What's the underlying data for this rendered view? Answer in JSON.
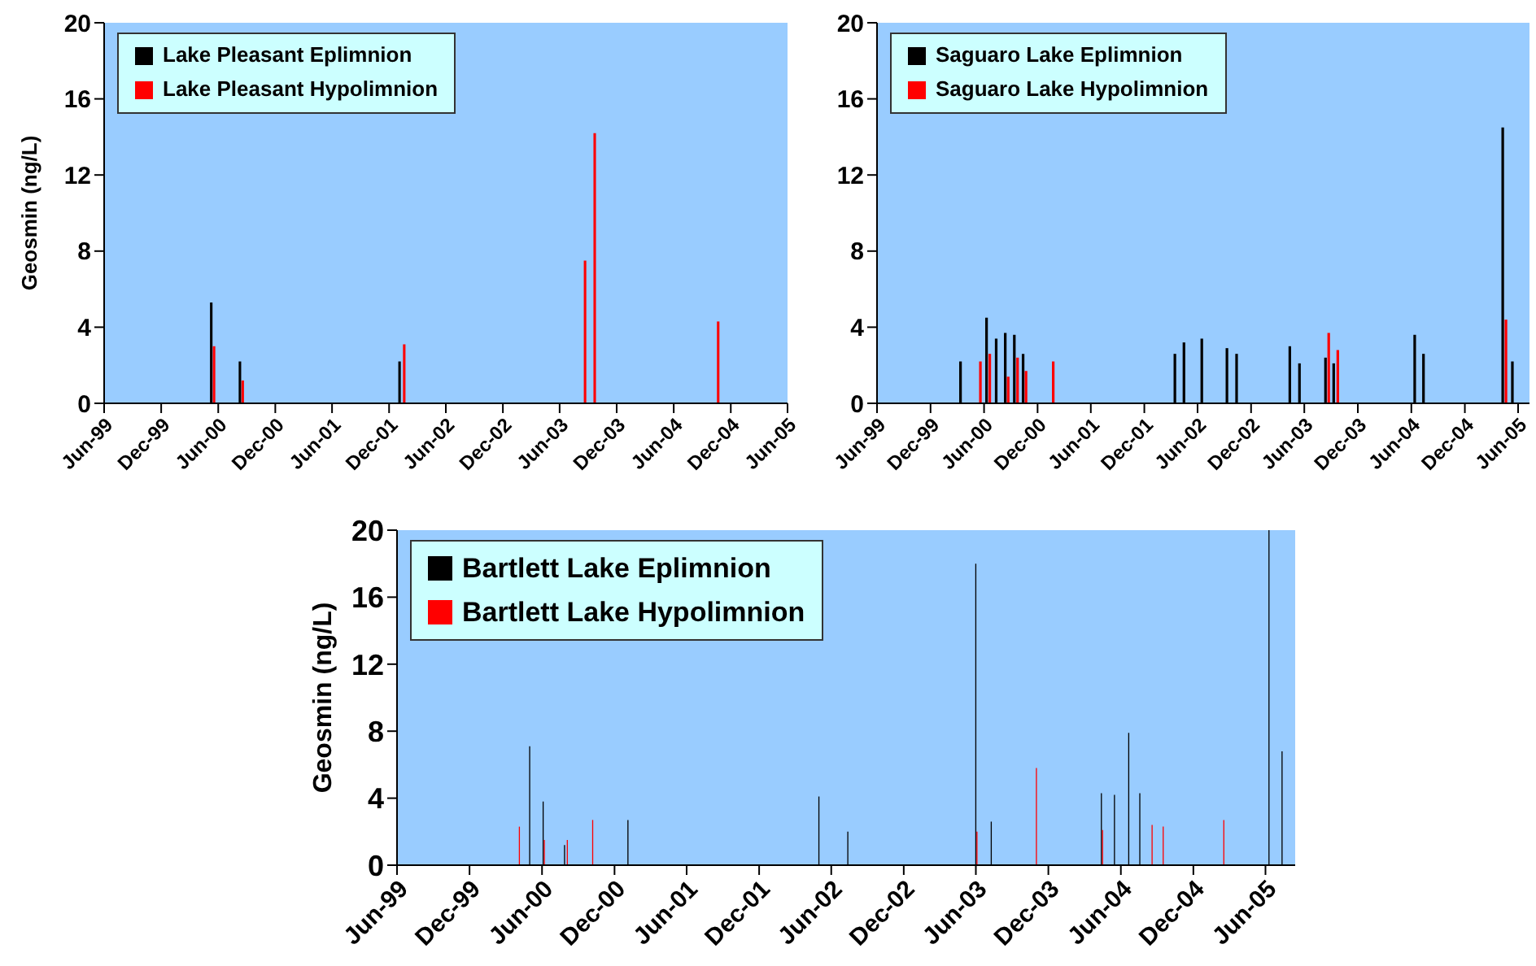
{
  "chart_data": [
    {
      "type": "bar",
      "ylabel": "Geosmin (ng/L)",
      "xlim": [
        "1999-06",
        "2005-06"
      ],
      "xticks": [
        {
          "value": "1999-06",
          "label": "Jun-99"
        },
        {
          "value": "1999-12",
          "label": "Dec-99"
        },
        {
          "value": "2000-06",
          "label": "Jun-00"
        },
        {
          "value": "2000-12",
          "label": "Dec-00"
        },
        {
          "value": "2001-06",
          "label": "Jun-01"
        },
        {
          "value": "2001-12",
          "label": "Dec-01"
        },
        {
          "value": "2002-06",
          "label": "Jun-02"
        },
        {
          "value": "2002-12",
          "label": "Dec-02"
        },
        {
          "value": "2003-06",
          "label": "Jun-03"
        },
        {
          "value": "2003-12",
          "label": "Dec-03"
        },
        {
          "value": "2004-06",
          "label": "Jun-04"
        },
        {
          "value": "2004-12",
          "label": "Dec-04"
        },
        {
          "value": "2005-06",
          "label": "Jun-05"
        }
      ],
      "ylim": [
        0,
        20
      ],
      "yticks": [
        0,
        4,
        8,
        12,
        16,
        20
      ],
      "legend": "top left",
      "grid": false,
      "series": [
        {
          "name": "Lake Pleasant Eplimnion",
          "color": "#000000",
          "x": [
            "2000-05-10",
            "2000-08-10",
            "2002-01-04"
          ],
          "values": [
            5.3,
            2.2,
            2.2
          ]
        },
        {
          "name": "Lake Pleasant Hypolimnion",
          "color": "#ff0000",
          "x": [
            "2000-05-19",
            "2000-08-19",
            "2002-01-19",
            "2003-08-22",
            "2003-09-22",
            "2004-10-22"
          ],
          "values": [
            3.0,
            1.2,
            3.1,
            7.5,
            14.2,
            4.3
          ]
        }
      ]
    },
    {
      "type": "bar",
      "xlim": [
        "1999-06",
        "2005-07-10"
      ],
      "xticks": [
        {
          "value": "1999-06",
          "label": "Jun-99"
        },
        {
          "value": "1999-12",
          "label": "Dec-99"
        },
        {
          "value": "2000-06",
          "label": "Jun-00"
        },
        {
          "value": "2000-12",
          "label": "Dec-00"
        },
        {
          "value": "2001-06",
          "label": "Jun-01"
        },
        {
          "value": "2001-12",
          "label": "Dec-01"
        },
        {
          "value": "2002-06",
          "label": "Jun-02"
        },
        {
          "value": "2002-12",
          "label": "Dec-02"
        },
        {
          "value": "2003-06",
          "label": "Jun-03"
        },
        {
          "value": "2003-12",
          "label": "Dec-03"
        },
        {
          "value": "2004-06",
          "label": "Jun-04"
        },
        {
          "value": "2004-12",
          "label": "Dec-04"
        },
        {
          "value": "2005-06",
          "label": "Jun-05"
        }
      ],
      "ylim": [
        0,
        20
      ],
      "yticks": [
        0,
        4,
        8,
        12,
        16,
        20
      ],
      "legend": "top left",
      "grid": false,
      "series": [
        {
          "name": "Saguaro Lake Eplimnion",
          "color": "#000000",
          "x": [
            "2000-03-13",
            "2000-06-10",
            "2000-07-13",
            "2000-08-13",
            "2000-09-13",
            "2000-10-13",
            "2002-03-16",
            "2002-04-16",
            "2002-06-16",
            "2002-09-10",
            "2002-10-13",
            "2003-04-13",
            "2003-05-16",
            "2003-08-13",
            "2003-09-10",
            "2004-06-13",
            "2004-07-13",
            "2005-04-10",
            "2005-05-13"
          ],
          "values": [
            2.2,
            4.5,
            3.4,
            3.7,
            3.6,
            2.6,
            2.6,
            3.2,
            3.4,
            2.9,
            2.6,
            3.0,
            2.1,
            2.4,
            2.1,
            3.6,
            2.6,
            14.5,
            2.2
          ]
        },
        {
          "name": "Saguaro Lake Hypolimnion",
          "color": "#ff0000",
          "x": [
            "2000-05-20",
            "2000-06-21",
            "2000-08-23",
            "2000-09-24",
            "2000-10-23",
            "2001-01-24",
            "2003-08-24",
            "2003-09-24",
            "2005-04-21"
          ],
          "values": [
            2.2,
            2.6,
            1.4,
            2.4,
            1.7,
            2.2,
            3.7,
            2.8,
            4.4
          ]
        }
      ]
    },
    {
      "type": "bar",
      "ylabel": "Geosmin (ng/L)",
      "xlim": [
        "1999-06",
        "2005-08-15"
      ],
      "xticks": [
        {
          "value": "1999-06",
          "label": "Jun-99"
        },
        {
          "value": "1999-12",
          "label": "Dec-99"
        },
        {
          "value": "2000-06",
          "label": "Jun-00"
        },
        {
          "value": "2000-12",
          "label": "Dec-00"
        },
        {
          "value": "2001-06",
          "label": "Jun-01"
        },
        {
          "value": "2001-12",
          "label": "Dec-01"
        },
        {
          "value": "2002-06",
          "label": "Jun-02"
        },
        {
          "value": "2002-12",
          "label": "Dec-02"
        },
        {
          "value": "2003-06",
          "label": "Jun-03"
        },
        {
          "value": "2003-12",
          "label": "Dec-03"
        },
        {
          "value": "2004-06",
          "label": "Jun-04"
        },
        {
          "value": "2004-12",
          "label": "Dec-04"
        },
        {
          "value": "2005-06",
          "label": "Jun-05"
        }
      ],
      "ylim": [
        0,
        20
      ],
      "yticks": [
        0,
        4,
        8,
        12,
        16,
        20
      ],
      "legend": "top left",
      "grid": false,
      "series": [
        {
          "name": "Bartlett Lake Eplimnion",
          "color": "#000000",
          "x": [
            "2000-05-01",
            "2000-06-04",
            "2000-07-28",
            "2001-01-04",
            "2002-05-01",
            "2002-07-13",
            "2003-06-01",
            "2003-07-10",
            "2004-04-13",
            "2004-05-16",
            "2004-06-21",
            "2004-07-19",
            "2005-06-10",
            "2005-07-13"
          ],
          "values": [
            7.1,
            3.8,
            1.2,
            2.7,
            4.1,
            2.0,
            18,
            2.6,
            4.3,
            4.2,
            7.9,
            4.3,
            20,
            6.8
          ]
        },
        {
          "name": "Bartlett Lake Hypolimnion",
          "color": "#ff0000",
          "x": [
            "2000-04-05",
            "2000-06-07",
            "2000-08-04",
            "2000-10-07",
            "2003-06-04",
            "2003-11-01",
            "2004-04-16",
            "2004-08-19",
            "2004-09-16",
            "2005-02-16"
          ],
          "values": [
            2.3,
            1.5,
            1.5,
            2.7,
            2.0,
            5.8,
            2.1,
            2.4,
            2.3,
            2.7
          ]
        }
      ]
    }
  ]
}
